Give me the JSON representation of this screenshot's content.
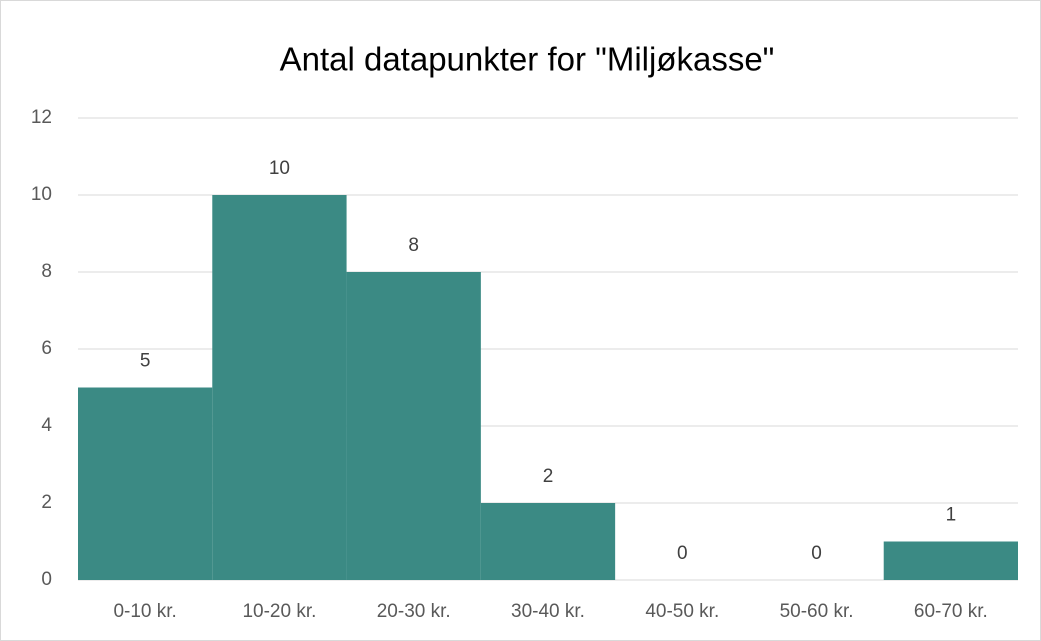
{
  "chart_data": {
    "type": "bar",
    "title": "Antal datapunkter for \"Miljøkasse\"",
    "categories": [
      "0-10 kr.",
      "10-20 kr.",
      "20-30 kr.",
      "30-40 kr.",
      "40-50 kr.",
      "50-60 kr.",
      "60-70 kr."
    ],
    "values": [
      5,
      10,
      8,
      2,
      0,
      0,
      1
    ],
    "color": "#3b8a84",
    "ylim": [
      0,
      12
    ],
    "yticks": [
      0,
      2,
      4,
      6,
      8,
      10,
      12
    ],
    "grid": true
  }
}
